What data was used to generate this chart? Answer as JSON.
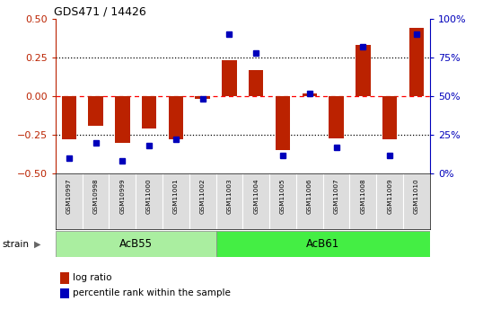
{
  "title": "GDS471 / 14426",
  "samples": [
    "GSM10997",
    "GSM10998",
    "GSM10999",
    "GSM11000",
    "GSM11001",
    "GSM11002",
    "GSM11003",
    "GSM11004",
    "GSM11005",
    "GSM11006",
    "GSM11007",
    "GSM11008",
    "GSM11009",
    "GSM11010"
  ],
  "log_ratio": [
    -0.28,
    -0.19,
    -0.3,
    -0.21,
    -0.28,
    -0.02,
    0.23,
    0.17,
    -0.35,
    0.02,
    -0.27,
    0.33,
    -0.28,
    0.44
  ],
  "percentile": [
    10,
    20,
    8,
    18,
    22,
    48,
    90,
    78,
    12,
    52,
    17,
    82,
    12,
    90
  ],
  "groups": [
    {
      "label": "AcB55",
      "start": 0,
      "end": 5,
      "color": "#AAEEA0"
    },
    {
      "label": "AcB61",
      "start": 6,
      "end": 13,
      "color": "#44EE44"
    }
  ],
  "group_row_label": "strain",
  "bar_color": "#BB2200",
  "dot_color": "#0000BB",
  "left_ylim": [
    -0.5,
    0.5
  ],
  "right_ylim": [
    0,
    100
  ],
  "left_yticks": [
    -0.5,
    -0.25,
    0.0,
    0.25,
    0.5
  ],
  "right_yticks": [
    0,
    25,
    50,
    75,
    100
  ],
  "right_yticklabels": [
    "0%",
    "25%",
    "50%",
    "75%",
    "100%"
  ],
  "background_color": "#FFFFFF"
}
